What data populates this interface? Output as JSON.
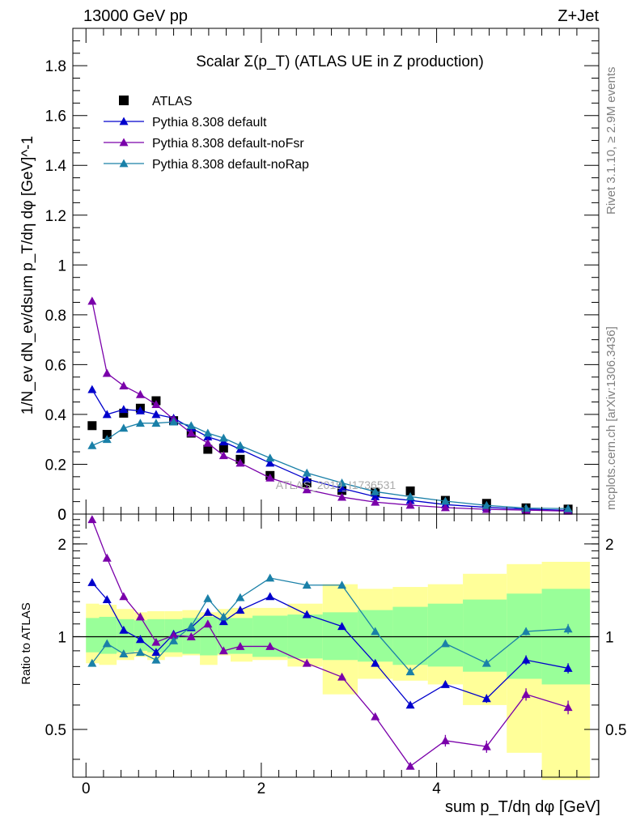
{
  "header": {
    "left": "13000 GeV pp",
    "right": "Z+Jet"
  },
  "side_labels": {
    "rivet": "Rivet 3.1.10, ≥ 2.9M events",
    "mcplots": "mcplots.cern.ch [arXiv:1306.3436]"
  },
  "chart_data": [
    {
      "type": "scatter",
      "title": "Scalar Σ(p_T) (ATLAS UE in Z production)",
      "watermark": "ATLAS_2019_I1736531",
      "ylabel": "1/N_ev dN_ev/dsum p_T/dη dφ [GeV]^-1",
      "xlim": [
        -0.15,
        5.85
      ],
      "ylim": [
        0,
        1.95
      ],
      "x_ticks": [
        0,
        2,
        4
      ],
      "y_ticks": [
        "0",
        "0.2",
        "0.4",
        "0.6",
        "0.8",
        "1",
        "1.2",
        "1.4",
        "1.6",
        "1.8"
      ],
      "legend_position": "top-left",
      "bin_edges": [
        0,
        0.15,
        0.35,
        0.55,
        0.7,
        0.9,
        1.1,
        1.3,
        1.5,
        1.65,
        1.9,
        2.3,
        2.7,
        3.1,
        3.5,
        3.9,
        4.3,
        4.8,
        5.2,
        5.75
      ],
      "x": [
        0.07,
        0.24,
        0.43,
        0.62,
        0.8,
        1.0,
        1.2,
        1.39,
        1.57,
        1.76,
        2.1,
        2.52,
        2.92,
        3.3,
        3.7,
        4.1,
        4.57,
        5.02,
        5.5
      ],
      "series": [
        {
          "name": "ATLAS",
          "color": "#000000",
          "marker": "square",
          "values": [
            0.355,
            0.32,
            0.405,
            0.425,
            0.455,
            0.375,
            0.325,
            0.26,
            0.265,
            0.22,
            0.155,
            0.125,
            0.095,
            0.088,
            0.093,
            0.055,
            0.043,
            0.025,
            0.02
          ]
        },
        {
          "name": "Pythia 8.308 default",
          "color": "#0000cc",
          "marker": "triangle",
          "values": [
            0.5,
            0.4,
            0.42,
            0.415,
            0.4,
            0.385,
            0.345,
            0.31,
            0.29,
            0.26,
            0.205,
            0.14,
            0.103,
            0.07,
            0.055,
            0.038,
            0.027,
            0.02,
            0.015
          ]
        },
        {
          "name": "Pythia 8.308 default-noFsr",
          "color": "#7a00aa",
          "marker": "triangle",
          "values": [
            0.855,
            0.565,
            0.515,
            0.48,
            0.44,
            0.38,
            0.325,
            0.285,
            0.235,
            0.205,
            0.145,
            0.098,
            0.068,
            0.048,
            0.036,
            0.026,
            0.019,
            0.016,
            0.012
          ]
        },
        {
          "name": "Pythia 8.308 default-noRap",
          "color": "#1a80a8",
          "marker": "triangle",
          "values": [
            0.275,
            0.3,
            0.345,
            0.365,
            0.365,
            0.37,
            0.355,
            0.325,
            0.305,
            0.275,
            0.225,
            0.165,
            0.125,
            0.09,
            0.07,
            0.052,
            0.035,
            0.024,
            0.022
          ]
        }
      ]
    },
    {
      "type": "line",
      "xlabel": "sum p_T/dη dφ [GeV]",
      "ylabel": "Ratio to ATLAS",
      "scale": "log",
      "xlim": [
        -0.15,
        5.85
      ],
      "ylim": [
        0.35,
        2.5
      ],
      "x_ticks": [
        "0",
        "2",
        "4"
      ],
      "y_ticks": [
        "0.5",
        "1",
        "2"
      ],
      "bin_edges": [
        0,
        0.15,
        0.35,
        0.55,
        0.7,
        0.9,
        1.1,
        1.3,
        1.5,
        1.65,
        1.9,
        2.3,
        2.7,
        3.1,
        3.5,
        3.9,
        4.3,
        4.8,
        5.2,
        5.75
      ],
      "x": [
        0.07,
        0.24,
        0.43,
        0.62,
        0.8,
        1.0,
        1.2,
        1.39,
        1.57,
        1.76,
        2.1,
        2.52,
        2.92,
        3.3,
        3.7,
        4.1,
        4.57,
        5.02,
        5.5
      ],
      "band_stat": [
        [
          0.89,
          1.15
        ],
        [
          0.88,
          1.16
        ],
        [
          0.89,
          1.14
        ],
        [
          0.9,
          1.13
        ],
        [
          0.89,
          1.14
        ],
        [
          0.89,
          1.14
        ],
        [
          0.88,
          1.15
        ],
        [
          0.87,
          1.16
        ],
        [
          0.88,
          1.15
        ],
        [
          0.88,
          1.15
        ],
        [
          0.86,
          1.17
        ],
        [
          0.85,
          1.18
        ],
        [
          0.84,
          1.2
        ],
        [
          0.83,
          1.22
        ],
        [
          0.81,
          1.25
        ],
        [
          0.8,
          1.28
        ],
        [
          0.77,
          1.32
        ],
        [
          0.73,
          1.38
        ],
        [
          0.7,
          1.43
        ]
      ],
      "band_total": [
        [
          0.82,
          1.28
        ],
        [
          0.81,
          1.27
        ],
        [
          0.84,
          1.23
        ],
        [
          0.86,
          1.2
        ],
        [
          0.84,
          1.21
        ],
        [
          0.86,
          1.21
        ],
        [
          0.87,
          1.22
        ],
        [
          0.81,
          1.2
        ],
        [
          0.87,
          1.23
        ],
        [
          0.83,
          1.24
        ],
        [
          0.84,
          1.24
        ],
        [
          0.8,
          1.28
        ],
        [
          0.65,
          1.48
        ],
        [
          0.73,
          1.43
        ],
        [
          0.72,
          1.45
        ],
        [
          0.7,
          1.48
        ],
        [
          0.6,
          1.6
        ],
        [
          0.42,
          1.72
        ],
        [
          0.3,
          1.75
        ]
      ],
      "series": [
        {
          "name": "Pythia 8.308 default",
          "color": "#0000cc",
          "values": [
            1.5,
            1.32,
            1.05,
            0.98,
            0.89,
            1.02,
            1.07,
            1.2,
            1.12,
            1.22,
            1.35,
            1.18,
            1.08,
            0.82,
            0.6,
            0.7,
            0.63,
            0.84,
            0.79
          ],
          "err": [
            0,
            0,
            0,
            0,
            0,
            0,
            0,
            0,
            0,
            0,
            0,
            0,
            0,
            0,
            0,
            0,
            0.02,
            0.03,
            0.03
          ]
        },
        {
          "name": "Pythia 8.308 default-noFsr",
          "color": "#7a00aa",
          "values": [
            2.4,
            1.8,
            1.35,
            1.16,
            0.96,
            1.01,
            1.0,
            1.1,
            0.9,
            0.93,
            0.93,
            0.82,
            0.74,
            0.55,
            0.38,
            0.46,
            0.44,
            0.65,
            0.59
          ],
          "err": [
            0,
            0,
            0,
            0,
            0,
            0,
            0,
            0,
            0,
            0,
            0,
            0,
            0,
            0,
            0,
            0.02,
            0.02,
            0.03,
            0.03
          ]
        },
        {
          "name": "Pythia 8.308 default-noRap",
          "color": "#1a80a8",
          "values": [
            0.82,
            0.95,
            0.88,
            0.89,
            0.84,
            0.97,
            1.08,
            1.33,
            1.16,
            1.34,
            1.55,
            1.47,
            1.47,
            1.04,
            0.77,
            0.95,
            0.82,
            1.04,
            1.06
          ],
          "err": [
            0,
            0,
            0,
            0,
            0,
            0,
            0,
            0,
            0,
            0,
            0,
            0,
            0,
            0,
            0,
            0,
            0,
            0.03,
            0.04
          ]
        }
      ],
      "colors": {
        "band_stat": "#99ff99",
        "band_total": "#ffff99",
        "reference_line": "#000000"
      }
    }
  ]
}
